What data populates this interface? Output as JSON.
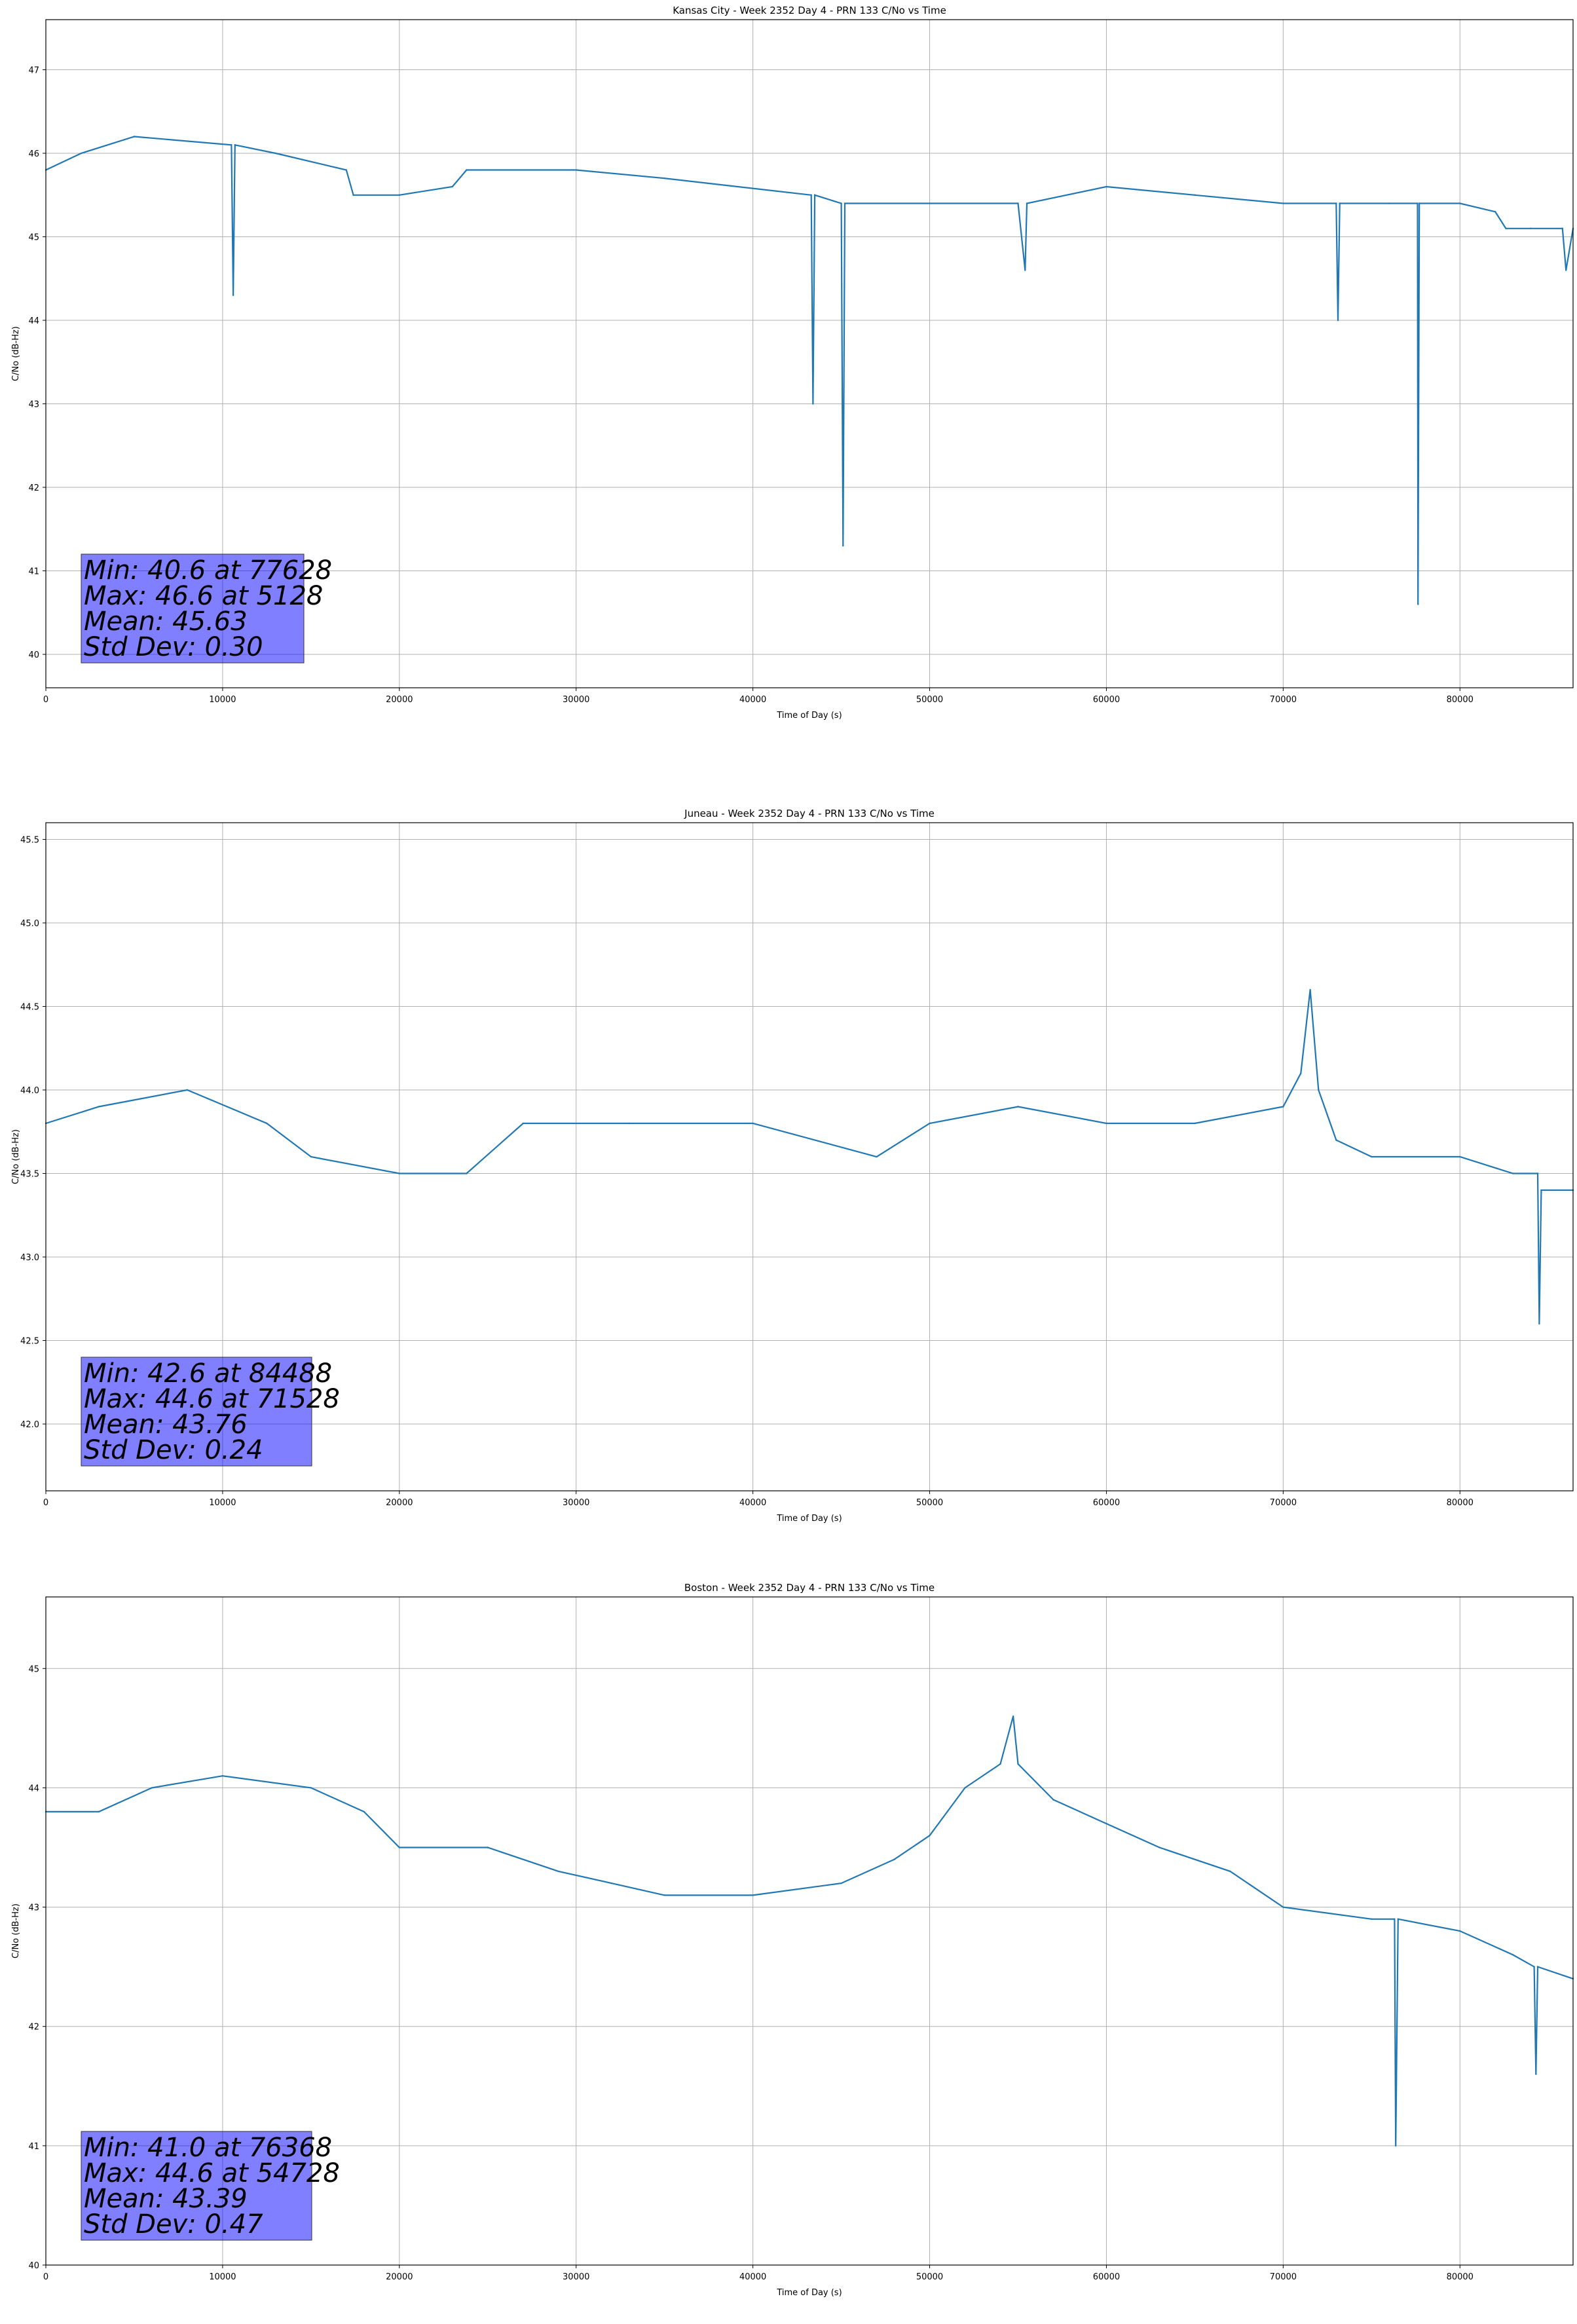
{
  "chart_data": [
    {
      "type": "line",
      "title": "Kansas City - Week 2352 Day 4 - PRN 133 C/No vs Time",
      "xlabel": "Time of Day (s)",
      "ylabel": "C/No (dB-Hz)",
      "xlim": [
        0,
        86400
      ],
      "ylim": [
        39.6,
        47.6
      ],
      "xticks": [
        0,
        10000,
        20000,
        30000,
        40000,
        50000,
        60000,
        70000,
        80000
      ],
      "yticks": [
        40,
        41,
        42,
        43,
        44,
        45,
        46,
        47
      ],
      "grid": true,
      "stats": [
        "Min: 40.6 at 77628",
        "Max: 46.6 at 5128",
        "Mean: 45.63",
        "Std Dev: 0.30"
      ],
      "series": [
        {
          "x": [
            0,
            2000,
            5000,
            10500,
            10600,
            10700,
            13000,
            17000,
            17400,
            20000,
            23000,
            23800,
            30000,
            35000,
            43300,
            43400,
            43500,
            45000,
            45100,
            45200,
            50000,
            55000,
            55400,
            55500,
            60000,
            65000,
            70000,
            73000,
            73100,
            73200,
            76000,
            77600,
            77628,
            77700,
            80000,
            82000,
            82600,
            84000,
            85800,
            86000,
            86400
          ],
          "y": [
            45.8,
            46.0,
            46.2,
            46.1,
            44.3,
            46.1,
            46.0,
            45.8,
            45.5,
            45.5,
            45.6,
            45.8,
            45.8,
            45.7,
            45.5,
            43.0,
            45.5,
            45.4,
            41.3,
            45.4,
            45.4,
            45.4,
            44.6,
            45.4,
            45.6,
            45.5,
            45.4,
            45.4,
            44.0,
            45.4,
            45.4,
            45.4,
            40.6,
            45.4,
            45.4,
            45.3,
            45.1,
            45.1,
            45.1,
            44.6,
            45.1
          ]
        }
      ]
    },
    {
      "type": "line",
      "title": "Juneau - Week 2352 Day 4 - PRN 133 C/No vs Time",
      "xlabel": "Time of Day (s)",
      "ylabel": "C/No (dB-Hz)",
      "xlim": [
        0,
        86400
      ],
      "ylim": [
        41.6,
        45.6
      ],
      "xticks": [
        0,
        10000,
        20000,
        30000,
        40000,
        50000,
        60000,
        70000,
        80000
      ],
      "yticks": [
        42.0,
        42.5,
        43.0,
        43.5,
        44.0,
        44.5,
        45.0,
        45.5
      ],
      "grid": true,
      "stats": [
        "Min: 42.6 at 84488",
        "Max: 44.6 at 71528",
        "Mean: 43.76",
        "Std Dev: 0.24"
      ],
      "series": [
        {
          "x": [
            0,
            3000,
            8000,
            12500,
            15000,
            20000,
            23800,
            27000,
            33000,
            40000,
            47000,
            50000,
            55000,
            60000,
            65000,
            70000,
            71000,
            71528,
            72000,
            73000,
            75000,
            80000,
            83000,
            84400,
            84488,
            84600,
            86400
          ],
          "y": [
            43.8,
            43.9,
            44.0,
            43.8,
            43.6,
            43.5,
            43.5,
            43.8,
            43.8,
            43.8,
            43.6,
            43.8,
            43.9,
            43.8,
            43.8,
            43.9,
            44.1,
            44.6,
            44.0,
            43.7,
            43.6,
            43.6,
            43.5,
            43.5,
            42.6,
            43.4,
            43.4
          ]
        }
      ]
    },
    {
      "type": "line",
      "title": "Boston - Week 2352 Day 4 - PRN 133 C/No vs Time",
      "xlabel": "Time of Day (s)",
      "ylabel": "C/No (dB-Hz)",
      "xlim": [
        0,
        86400
      ],
      "ylim": [
        40.0,
        45.6
      ],
      "xticks": [
        0,
        10000,
        20000,
        30000,
        40000,
        50000,
        60000,
        70000,
        80000
      ],
      "yticks": [
        40,
        41,
        42,
        43,
        44,
        45
      ],
      "grid": true,
      "stats": [
        "Min: 41.0 at 76368",
        "Max: 44.6 at 54728",
        "Mean: 43.39",
        "Std Dev: 0.47"
      ],
      "series": [
        {
          "x": [
            0,
            3000,
            6000,
            10000,
            15000,
            18000,
            20000,
            25000,
            29000,
            32000,
            35000,
            40000,
            45000,
            48000,
            50000,
            52000,
            54000,
            54728,
            55000,
            57000,
            60000,
            63000,
            67000,
            70000,
            75000,
            76300,
            76368,
            76500,
            80000,
            83000,
            84200,
            84300,
            84400,
            86400
          ],
          "y": [
            43.8,
            43.8,
            44.0,
            44.1,
            44.0,
            43.8,
            43.5,
            43.5,
            43.3,
            43.2,
            43.1,
            43.1,
            43.2,
            43.4,
            43.6,
            44.0,
            44.2,
            44.6,
            44.2,
            43.9,
            43.7,
            43.5,
            43.3,
            43.0,
            42.9,
            42.9,
            41.0,
            42.9,
            42.8,
            42.6,
            42.5,
            41.6,
            42.5,
            42.4
          ]
        }
      ]
    }
  ]
}
